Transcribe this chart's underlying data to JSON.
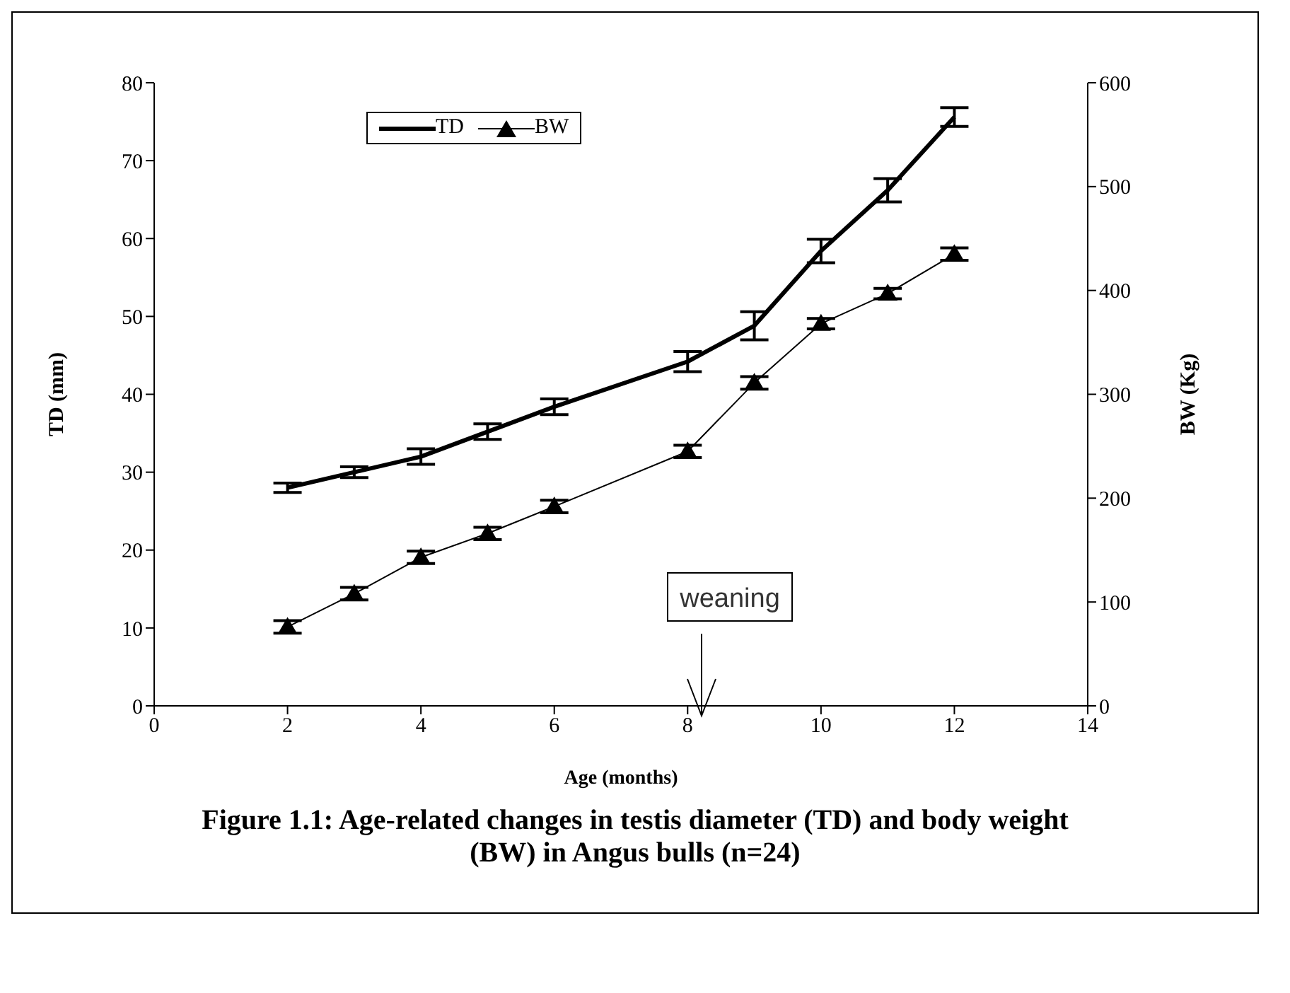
{
  "chart_data": {
    "type": "line",
    "title": "Figure 1.1: Age-related changes in testis diameter (TD) and body weight (BW) in Angus bulls (n=24)",
    "xlabel": "Age (months)",
    "ylabel": "TD (mm)",
    "y2label": "BW (Kg)",
    "x": [
      2,
      3,
      4,
      5,
      6,
      8,
      9,
      10,
      11,
      12
    ],
    "series": [
      {
        "name": "TD",
        "color": "#000000",
        "marker": "none",
        "values": [
          28,
          30,
          32,
          35.2,
          38.4,
          44.2,
          48.8,
          58.4,
          66.2,
          75.6
        ],
        "errors": [
          0.6,
          0.7,
          1,
          1,
          1,
          1.3,
          1.8,
          1.5,
          1.5,
          1.2
        ]
      },
      {
        "name": "BW",
        "color": "#000000",
        "axis": "y2",
        "marker": "triangle",
        "values": [
          76,
          108,
          143,
          166,
          192,
          245,
          311,
          368,
          397,
          435
        ],
        "errors": [
          6,
          6,
          6,
          6,
          6,
          6,
          6,
          5,
          5,
          6
        ]
      }
    ],
    "xlim": [
      0,
      14
    ],
    "xticks": [
      0,
      2,
      4,
      6,
      8,
      10,
      12,
      14
    ],
    "ylim": [
      0,
      80
    ],
    "yticks": [
      0,
      10,
      20,
      30,
      40,
      50,
      60,
      70,
      80
    ],
    "y2lim": [
      0,
      600
    ],
    "y2ticks": [
      0,
      100,
      200,
      300,
      400,
      500,
      600
    ],
    "annotations": [
      "weaning"
    ],
    "legend": "top left",
    "grid": false
  }
}
